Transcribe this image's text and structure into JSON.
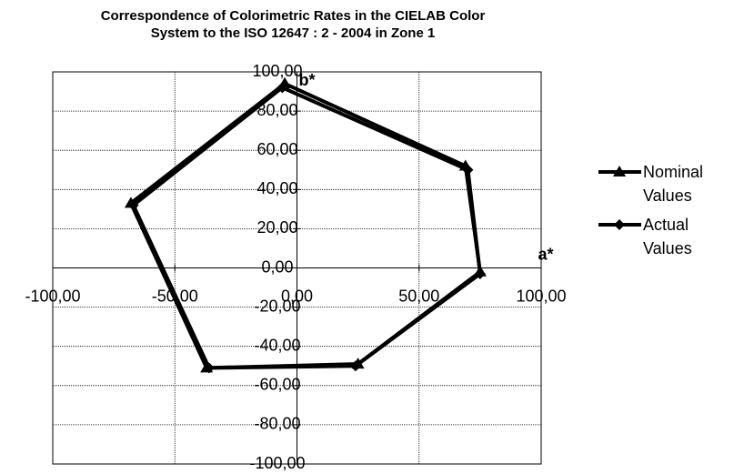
{
  "chart_data": {
    "type": "scatter-line",
    "title": "Correspondence of Colorimetric Rates in the CIELAB Color System  to the ISO 12647 : 2 - 2004 in Zone 1",
    "x_label": "a*",
    "y_label": "b*",
    "xlim": [
      -100,
      100
    ],
    "ylim": [
      -100,
      100
    ],
    "xticks": [
      {
        "value": -100,
        "label": "-100,00"
      },
      {
        "value": -50,
        "label": "-50,00"
      },
      {
        "value": 0,
        "label": "0,00"
      },
      {
        "value": 50,
        "label": "50,00"
      },
      {
        "value": 100,
        "label": "100,00"
      }
    ],
    "yticks": [
      {
        "value": -100,
        "label": "-100,00"
      },
      {
        "value": -80,
        "label": "-80,00"
      },
      {
        "value": -60,
        "label": "-60,00"
      },
      {
        "value": -40,
        "label": "-40,00"
      },
      {
        "value": -20,
        "label": "-20,00"
      },
      {
        "value": 0,
        "label": "0,00"
      },
      {
        "value": 20,
        "label": "20,00"
      },
      {
        "value": 40,
        "label": "40,00"
      },
      {
        "value": 60,
        "label": "60,00"
      },
      {
        "value": 80,
        "label": "80,00"
      },
      {
        "value": 100,
        "label": "100,00"
      }
    ],
    "grid": true,
    "legend": "right",
    "series": [
      {
        "name": "Nominal Values",
        "color": "#000000",
        "marker": "triangle",
        "x": [
          -5,
          69,
          75,
          25,
          -37,
          -68,
          -5
        ],
        "values": [
          94,
          52,
          -2,
          -49,
          -51,
          33,
          94
        ]
      },
      {
        "name": "Actual Values",
        "color": "#000000",
        "marker": "diamond",
        "x": [
          -6,
          70,
          75,
          24,
          -36,
          -67,
          -6
        ],
        "values": [
          92,
          50,
          -3,
          -50,
          -51,
          32,
          92
        ]
      }
    ]
  }
}
